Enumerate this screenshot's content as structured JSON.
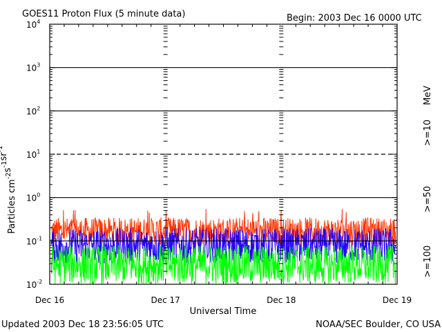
{
  "header": {
    "title": "GOES11 Proton Flux (5 minute data)",
    "begin": "Begin: 2003 Dec 16 0000 UTC"
  },
  "footer": {
    "updated": "Updated 2003 Dec 18 23:56:05 UTC",
    "source": "NOAA/SEC Boulder, CO USA"
  },
  "chart_data": {
    "type": "line",
    "title": "GOES11 Proton Flux (5 minute data)",
    "xlabel": "Universal Time",
    "ylabel_parts": [
      "Particles cm",
      "-2",
      "s",
      "-1",
      "sr",
      "-1"
    ],
    "y_scale": "log",
    "ylim": [
      0.01,
      10000
    ],
    "y_ticks": [
      {
        "base": "10",
        "exp": "4",
        "value": 10000
      },
      {
        "base": "10",
        "exp": "3",
        "value": 1000
      },
      {
        "base": "10",
        "exp": "2",
        "value": 100
      },
      {
        "base": "10",
        "exp": "1",
        "value": 10
      },
      {
        "base": "10",
        "exp": "0",
        "value": 1
      },
      {
        "base": "10",
        "exp": "-1",
        "value": 0.1
      },
      {
        "base": "10",
        "exp": "-2",
        "value": 0.01
      }
    ],
    "x_ticks": [
      "Dec 16",
      "Dec 17",
      "Dec 18",
      "Dec 19"
    ],
    "xlim": [
      "2003-12-16",
      "2003-12-19"
    ],
    "threshold_lines": [
      {
        "value": 1000,
        "style": "solid"
      },
      {
        "value": 100,
        "style": "solid"
      },
      {
        "value": 10,
        "style": "dashed"
      },
      {
        "value": 1,
        "style": "solid"
      },
      {
        "value": 0.1,
        "style": "solid"
      }
    ],
    "unit_label": "MeV",
    "series": [
      {
        "name": ">=10",
        "color": "#ff3300",
        "typical_range": [
          0.08,
          0.35
        ],
        "max": 0.55
      },
      {
        "name": ">=50",
        "color": "#2200ff",
        "typical_range": [
          0.03,
          0.2
        ]
      },
      {
        "name": ">=100",
        "color": "#00ff00",
        "typical_range": [
          0.01,
          0.08
        ]
      }
    ]
  }
}
